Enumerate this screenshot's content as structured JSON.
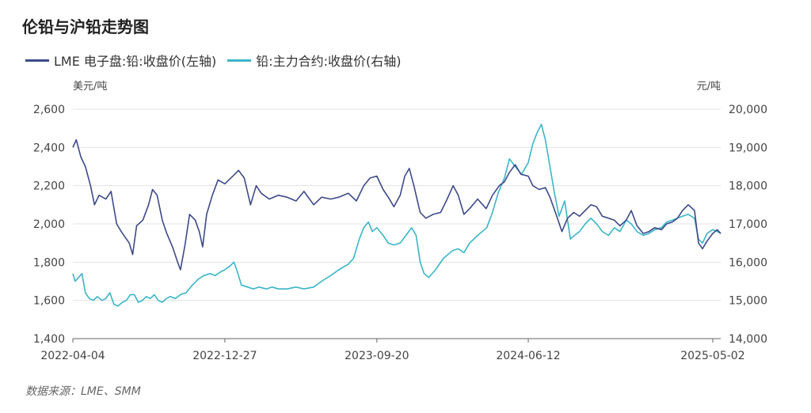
{
  "title": "伦铅与沪铅走势图",
  "source": "数据来源：LME、SMM",
  "chart_data": {
    "type": "line",
    "title": "伦铅与沪铅走势图",
    "y_left": {
      "label": "美元/吨",
      "lim": [
        1400,
        2600
      ],
      "ticks": [
        "1,400",
        "1,600",
        "1,800",
        "2,000",
        "2,200",
        "2,400",
        "2,600"
      ]
    },
    "y_right": {
      "label": "元/吨",
      "lim": [
        14000,
        20000
      ],
      "ticks": [
        "14,000",
        "15,000",
        "16,000",
        "17,000",
        "18,000",
        "19,000",
        "20,000"
      ]
    },
    "x_ticks": [
      "2022-04-04",
      "2022-12-27",
      "2023-09-20",
      "2024-06-12",
      "2025-05-02"
    ],
    "x_range": [
      "2022-04-04",
      "2025-05-16"
    ],
    "grid": true,
    "legend": "top-left",
    "series": [
      {
        "name": "LME 电子盘:铅:收盘价(左轴)",
        "axis": "left",
        "color": "#3d4a8a",
        "points": [
          [
            "2022-04-04",
            2400
          ],
          [
            "2022-04-10",
            2440
          ],
          [
            "2022-04-18",
            2350
          ],
          [
            "2022-04-26",
            2300
          ],
          [
            "2022-05-05",
            2200
          ],
          [
            "2022-05-12",
            2100
          ],
          [
            "2022-05-20",
            2150
          ],
          [
            "2022-06-01",
            2130
          ],
          [
            "2022-06-10",
            2170
          ],
          [
            "2022-06-20",
            2000
          ],
          [
            "2022-06-28",
            1960
          ],
          [
            "2022-07-05",
            1930
          ],
          [
            "2022-07-12",
            1900
          ],
          [
            "2022-07-18",
            1840
          ],
          [
            "2022-07-25",
            1990
          ],
          [
            "2022-08-05",
            2020
          ],
          [
            "2022-08-15",
            2100
          ],
          [
            "2022-08-22",
            2180
          ],
          [
            "2022-08-30",
            2150
          ],
          [
            "2022-09-08",
            2020
          ],
          [
            "2022-09-16",
            1950
          ],
          [
            "2022-09-26",
            1880
          ],
          [
            "2022-10-05",
            1800
          ],
          [
            "2022-10-10",
            1760
          ],
          [
            "2022-10-18",
            1890
          ],
          [
            "2022-10-26",
            2050
          ],
          [
            "2022-11-05",
            2020
          ],
          [
            "2022-11-12",
            1960
          ],
          [
            "2022-11-18",
            1880
          ],
          [
            "2022-11-25",
            2050
          ],
          [
            "2022-12-05",
            2150
          ],
          [
            "2022-12-15",
            2230
          ],
          [
            "2022-12-27",
            2210
          ],
          [
            "2023-01-10",
            2250
          ],
          [
            "2023-01-20",
            2280
          ],
          [
            "2023-01-30",
            2240
          ],
          [
            "2023-02-10",
            2100
          ],
          [
            "2023-02-20",
            2200
          ],
          [
            "2023-03-01",
            2160
          ],
          [
            "2023-03-15",
            2130
          ],
          [
            "2023-03-31",
            2150
          ],
          [
            "2023-04-15",
            2140
          ],
          [
            "2023-05-01",
            2120
          ],
          [
            "2023-05-15",
            2170
          ],
          [
            "2023-06-01",
            2100
          ],
          [
            "2023-06-15",
            2140
          ],
          [
            "2023-07-01",
            2130
          ],
          [
            "2023-07-15",
            2140
          ],
          [
            "2023-08-01",
            2160
          ],
          [
            "2023-08-15",
            2120
          ],
          [
            "2023-08-28",
            2200
          ],
          [
            "2023-09-08",
            2240
          ],
          [
            "2023-09-20",
            2250
          ],
          [
            "2023-10-01",
            2180
          ],
          [
            "2023-10-10",
            2140
          ],
          [
            "2023-10-20",
            2090
          ],
          [
            "2023-10-31",
            2150
          ],
          [
            "2023-11-08",
            2250
          ],
          [
            "2023-11-16",
            2290
          ],
          [
            "2023-11-24",
            2200
          ],
          [
            "2023-12-05",
            2060
          ],
          [
            "2023-12-15",
            2030
          ],
          [
            "2023-12-28",
            2050
          ],
          [
            "2024-01-10",
            2060
          ],
          [
            "2024-01-20",
            2120
          ],
          [
            "2024-02-01",
            2200
          ],
          [
            "2024-02-10",
            2150
          ],
          [
            "2024-02-20",
            2050
          ],
          [
            "2024-03-01",
            2080
          ],
          [
            "2024-03-15",
            2130
          ],
          [
            "2024-03-30",
            2080
          ],
          [
            "2024-04-10",
            2150
          ],
          [
            "2024-04-22",
            2200
          ],
          [
            "2024-05-01",
            2220
          ],
          [
            "2024-05-10",
            2270
          ],
          [
            "2024-05-20",
            2310
          ],
          [
            "2024-05-30",
            2260
          ],
          [
            "2024-06-12",
            2250
          ],
          [
            "2024-06-20",
            2200
          ],
          [
            "2024-07-01",
            2180
          ],
          [
            "2024-07-12",
            2190
          ],
          [
            "2024-07-20",
            2140
          ],
          [
            "2024-08-01",
            2040
          ],
          [
            "2024-08-10",
            1960
          ],
          [
            "2024-08-20",
            2030
          ],
          [
            "2024-08-31",
            2060
          ],
          [
            "2024-09-10",
            2040
          ],
          [
            "2024-09-20",
            2070
          ],
          [
            "2024-09-30",
            2100
          ],
          [
            "2024-10-10",
            2090
          ],
          [
            "2024-10-20",
            2040
          ],
          [
            "2024-10-31",
            2030
          ],
          [
            "2024-11-10",
            2020
          ],
          [
            "2024-11-20",
            1990
          ],
          [
            "2024-12-01",
            2020
          ],
          [
            "2024-12-10",
            2070
          ],
          [
            "2024-12-20",
            1990
          ],
          [
            "2024-12-31",
            1950
          ],
          [
            "2025-01-10",
            1960
          ],
          [
            "2025-01-20",
            1980
          ],
          [
            "2025-02-01",
            1970
          ],
          [
            "2025-02-10",
            2000
          ],
          [
            "2025-02-20",
            2010
          ],
          [
            "2025-03-01",
            2030
          ],
          [
            "2025-03-10",
            2070
          ],
          [
            "2025-03-20",
            2100
          ],
          [
            "2025-03-31",
            2070
          ],
          [
            "2025-04-07",
            1900
          ],
          [
            "2025-04-14",
            1870
          ],
          [
            "2025-04-22",
            1910
          ],
          [
            "2025-05-02",
            1950
          ],
          [
            "2025-05-10",
            1970
          ],
          [
            "2025-05-16",
            1950
          ]
        ]
      },
      {
        "name": "铅:主力合约:收盘价(右轴)",
        "axis": "right",
        "color": "#3bb5c8",
        "points": [
          [
            "2022-04-04",
            15700
          ],
          [
            "2022-04-08",
            15500
          ],
          [
            "2022-04-14",
            15600
          ],
          [
            "2022-04-20",
            15700
          ],
          [
            "2022-04-26",
            15200
          ],
          [
            "2022-05-03",
            15050
          ],
          [
            "2022-05-10",
            15000
          ],
          [
            "2022-05-17",
            15100
          ],
          [
            "2022-05-25",
            15000
          ],
          [
            "2022-06-01",
            15050
          ],
          [
            "2022-06-08",
            15200
          ],
          [
            "2022-06-15",
            14900
          ],
          [
            "2022-06-22",
            14850
          ],
          [
            "2022-06-30",
            14950
          ],
          [
            "2022-07-07",
            15000
          ],
          [
            "2022-07-14",
            15150
          ],
          [
            "2022-07-21",
            15150
          ],
          [
            "2022-07-28",
            14950
          ],
          [
            "2022-08-04",
            15000
          ],
          [
            "2022-08-11",
            15100
          ],
          [
            "2022-08-18",
            15050
          ],
          [
            "2022-08-25",
            15150
          ],
          [
            "2022-09-01",
            15000
          ],
          [
            "2022-09-08",
            14950
          ],
          [
            "2022-09-15",
            15050
          ],
          [
            "2022-09-22",
            15100
          ],
          [
            "2022-10-01",
            15050
          ],
          [
            "2022-10-10",
            15150
          ],
          [
            "2022-10-20",
            15200
          ],
          [
            "2022-10-31",
            15400
          ],
          [
            "2022-11-10",
            15550
          ],
          [
            "2022-11-20",
            15650
          ],
          [
            "2022-12-01",
            15700
          ],
          [
            "2022-12-10",
            15650
          ],
          [
            "2022-12-20",
            15750
          ],
          [
            "2022-12-27",
            15800
          ],
          [
            "2023-01-05",
            15900
          ],
          [
            "2023-01-12",
            16000
          ],
          [
            "2023-01-18",
            15750
          ],
          [
            "2023-01-25",
            15400
          ],
          [
            "2023-02-05",
            15350
          ],
          [
            "2023-02-15",
            15300
          ],
          [
            "2023-02-25",
            15350
          ],
          [
            "2023-03-10",
            15300
          ],
          [
            "2023-03-20",
            15350
          ],
          [
            "2023-03-31",
            15300
          ],
          [
            "2023-04-15",
            15300
          ],
          [
            "2023-05-01",
            15350
          ],
          [
            "2023-05-15",
            15300
          ],
          [
            "2023-06-01",
            15350
          ],
          [
            "2023-06-15",
            15500
          ],
          [
            "2023-07-01",
            15650
          ],
          [
            "2023-07-15",
            15800
          ],
          [
            "2023-08-01",
            15950
          ],
          [
            "2023-08-10",
            16100
          ],
          [
            "2023-08-20",
            16600
          ],
          [
            "2023-08-28",
            16900
          ],
          [
            "2023-09-05",
            17050
          ],
          [
            "2023-09-12",
            16800
          ],
          [
            "2023-09-20",
            16900
          ],
          [
            "2023-10-01",
            16700
          ],
          [
            "2023-10-10",
            16500
          ],
          [
            "2023-10-20",
            16450
          ],
          [
            "2023-10-31",
            16500
          ],
          [
            "2023-11-10",
            16700
          ],
          [
            "2023-11-20",
            16900
          ],
          [
            "2023-11-28",
            16700
          ],
          [
            "2023-12-05",
            16000
          ],
          [
            "2023-12-12",
            15700
          ],
          [
            "2023-12-20",
            15600
          ],
          [
            "2024-01-01",
            15800
          ],
          [
            "2024-01-15",
            16100
          ],
          [
            "2024-01-31",
            16300
          ],
          [
            "2024-02-10",
            16350
          ],
          [
            "2024-02-20",
            16250
          ],
          [
            "2024-03-01",
            16500
          ],
          [
            "2024-03-15",
            16700
          ],
          [
            "2024-03-31",
            16900
          ],
          [
            "2024-04-10",
            17300
          ],
          [
            "2024-04-20",
            17800
          ],
          [
            "2024-05-01",
            18200
          ],
          [
            "2024-05-10",
            18700
          ],
          [
            "2024-05-20",
            18500
          ],
          [
            "2024-05-31",
            18300
          ],
          [
            "2024-06-12",
            18600
          ],
          [
            "2024-06-20",
            19100
          ],
          [
            "2024-06-28",
            19400
          ],
          [
            "2024-07-05",
            19600
          ],
          [
            "2024-07-12",
            19200
          ],
          [
            "2024-07-20",
            18500
          ],
          [
            "2024-07-28",
            17800
          ],
          [
            "2024-08-05",
            17200
          ],
          [
            "2024-08-15",
            17600
          ],
          [
            "2024-08-25",
            16600
          ],
          [
            "2024-09-01",
            16700
          ],
          [
            "2024-09-10",
            16800
          ],
          [
            "2024-09-20",
            17000
          ],
          [
            "2024-09-30",
            17150
          ],
          [
            "2024-10-10",
            17000
          ],
          [
            "2024-10-20",
            16800
          ],
          [
            "2024-10-31",
            16700
          ],
          [
            "2024-11-10",
            16900
          ],
          [
            "2024-11-20",
            16800
          ],
          [
            "2024-12-01",
            17100
          ],
          [
            "2024-12-10",
            17000
          ],
          [
            "2024-12-20",
            16800
          ],
          [
            "2024-12-31",
            16700
          ],
          [
            "2025-01-10",
            16750
          ],
          [
            "2025-01-20",
            16850
          ],
          [
            "2025-02-01",
            16900
          ],
          [
            "2025-02-10",
            17050
          ],
          [
            "2025-02-20",
            17100
          ],
          [
            "2025-03-01",
            17150
          ],
          [
            "2025-03-10",
            17200
          ],
          [
            "2025-03-20",
            17250
          ],
          [
            "2025-03-31",
            17150
          ],
          [
            "2025-04-07",
            16600
          ],
          [
            "2025-04-14",
            16500
          ],
          [
            "2025-04-22",
            16750
          ],
          [
            "2025-05-02",
            16850
          ],
          [
            "2025-05-10",
            16800
          ],
          [
            "2025-05-16",
            16750
          ]
        ]
      }
    ]
  }
}
